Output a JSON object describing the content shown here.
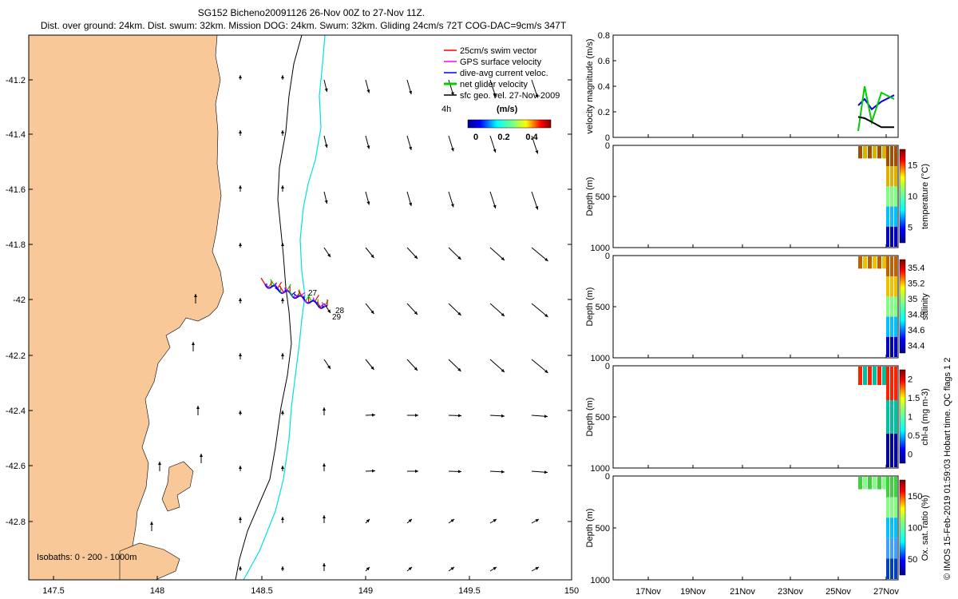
{
  "header": {
    "title_line1": "SG152 Bicheno20091126 26-Nov 00Z to 27-Nov 11Z.",
    "title_line2": "Dist. over ground: 24km. Dist. swum: 32km. Mission DOG: 24km. Swum: 32km. Gliding 24cm/s 72T COG-DAC=9cm/s 347T"
  },
  "legend": {
    "items": [
      {
        "label": "25cm/s swim vector",
        "color": "#ff0000"
      },
      {
        "label": "GPS surface velocity",
        "color": "#ff00ff"
      },
      {
        "label": "dive-avg current veloc.",
        "color": "#0000ff"
      },
      {
        "label": "net glider velocity",
        "color": "#00cc00"
      },
      {
        "label": "sfc geo. vel. 27-Nov-2009",
        "color": "#000000"
      }
    ],
    "time_label": "4h",
    "colorbar_title": "(m/s)",
    "colorbar_ticks": [
      "0",
      "0.2",
      "0.4"
    ]
  },
  "map": {
    "isobaths_label": "Isobaths: 0 - 200 - 1000m",
    "x_ticks": [
      "147.5",
      "148",
      "148.5",
      "149",
      "149.5",
      "150"
    ],
    "y_ticks": [
      "-41.2",
      "-41.4",
      "-41.6",
      "-41.8",
      "-42",
      "-42.2",
      "-42.4",
      "-42.6",
      "-42.8"
    ],
    "day_labels": [
      "27",
      "28",
      "29"
    ],
    "land_color": "#f8c898",
    "isobath_200_color": "#000000",
    "isobath_1000_color": "#00e0e0"
  },
  "side_panels": {
    "date_ticks": [
      "17Nov",
      "19Nov",
      "21Nov",
      "23Nov",
      "25Nov",
      "27Nov"
    ],
    "velocity": {
      "ylabel": "velocity magnitude (m/s)",
      "y_ticks": [
        "0",
        "0.2",
        "0.4",
        "0.6",
        "0.8"
      ]
    },
    "temperature": {
      "ylabel": "Depth (m)",
      "cbar_label": "temperature (°C)",
      "cbar_ticks": [
        "5",
        "10",
        "15"
      ],
      "y_ticks": [
        "0",
        "500",
        "1000"
      ]
    },
    "salinity": {
      "ylabel": "Depth (m)",
      "cbar_label": "salinity",
      "cbar_ticks": [
        "34.4",
        "34.6",
        "34.8",
        "35",
        "35.2",
        "35.4"
      ],
      "y_ticks": [
        "0",
        "500",
        "1000"
      ]
    },
    "chla": {
      "ylabel": "Depth (m)",
      "cbar_label": "chl-a (mg m-3)",
      "cbar_ticks": [
        "0",
        "0.5",
        "1",
        "1.5",
        "2"
      ],
      "y_ticks": [
        "0",
        "500",
        "1000"
      ]
    },
    "oxygen": {
      "ylabel": "Depth (m)",
      "cbar_label": "Ox. sat. ratio (%)",
      "cbar_ticks": [
        "50",
        "100",
        "150"
      ],
      "y_ticks": [
        "0",
        "500",
        "1000"
      ]
    }
  },
  "footer": {
    "credit": "© IMOS 15-Feb-2019 01:59:03 Hobart time. QC flags 1 2"
  },
  "chart_data": [
    {
      "type": "scatter",
      "title": "SG152 Bicheno20091126 26-Nov 00Z to 27-Nov 11Z.",
      "xlim": [
        147.4,
        150
      ],
      "ylim": [
        -43.0,
        -41.05
      ],
      "glider_track": [
        [
          148.52,
          -41.95
        ],
        [
          148.58,
          -41.95
        ],
        [
          148.64,
          -41.97
        ],
        [
          148.7,
          -41.98
        ],
        [
          148.74,
          -42.0
        ],
        [
          148.78,
          -42.02
        ],
        [
          148.81,
          -42.04
        ]
      ],
      "day_markers": [
        {
          "label": "27",
          "x": 148.72,
          "y": -41.98
        },
        {
          "label": "28",
          "x": 148.83,
          "y": -42.03
        },
        {
          "label": "29",
          "x": 148.82,
          "y": -42.05
        }
      ]
    },
    {
      "type": "line",
      "ylabel": "velocity magnitude (m/s)",
      "ylim": [
        0,
        0.8
      ],
      "x": [
        "26-Nov",
        "26.3-Nov",
        "26.6-Nov",
        "27-Nov",
        "27.4-Nov"
      ],
      "series": [
        {
          "color": "#0000ff",
          "values": [
            0.25,
            0.3,
            0.22,
            0.28,
            0.33
          ]
        },
        {
          "color": "#00cc00",
          "values": [
            0.05,
            0.4,
            0.12,
            0.35,
            0.3
          ]
        },
        {
          "color": "#000000",
          "values": [
            0.16,
            0.15,
            0.12,
            0.08,
            0.08
          ]
        }
      ]
    }
  ]
}
